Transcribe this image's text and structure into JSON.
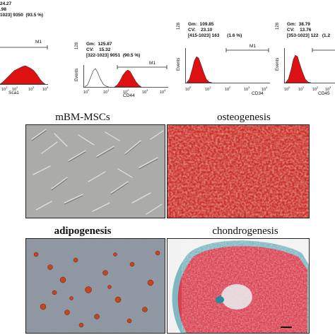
{
  "figure": {
    "histograms": [
      {
        "marker": "Sca1",
        "gm": "24.27",
        "cv": ".98",
        "gate": "1023] 9350",
        "percent": "(93.5 %)",
        "gate_label": "M1",
        "y_axis": "",
        "y_max": "",
        "x_ticks": [
          "0",
          "1",
          "2",
          "3",
          "4"
        ]
      },
      {
        "marker": "CD44",
        "gm": "125.87",
        "cv": "15.32",
        "gate": "[322-1023] 9051",
        "percent": "(90.5 %)",
        "gate_label": "M1",
        "y_axis": "Events",
        "y_max": "128",
        "x_ticks": [
          "0",
          "1",
          "2",
          "3",
          "4"
        ]
      },
      {
        "marker": "CD34",
        "gm": "109.85",
        "cv": "23.10",
        "gate": "[415-1023] 163",
        "percent": "(1.6 %)",
        "gate_label": "M1",
        "y_axis": "Events",
        "y_max": "128",
        "x_ticks": [
          "0",
          "1",
          "2",
          "3",
          "4"
        ]
      },
      {
        "marker": "CD45",
        "gm": "38.79",
        "cv": "13.76",
        "gate": "[353-1023] 122",
        "percent": "(1.2",
        "gate_label": "",
        "y_axis": "Events",
        "y_max": "128",
        "x_ticks": [
          "0",
          "1",
          "2",
          "3"
        ]
      }
    ],
    "panels": [
      {
        "title": "mBM-MSCs",
        "style": "normal"
      },
      {
        "title": "osteogenesis",
        "style": "normal"
      },
      {
        "title": "adipogenesis",
        "style": "bold"
      },
      {
        "title": "chondrogenesis",
        "style": "normal"
      }
    ],
    "colors": {
      "fill": "#dd1111",
      "outline": "#222222",
      "control": "#555555"
    }
  }
}
